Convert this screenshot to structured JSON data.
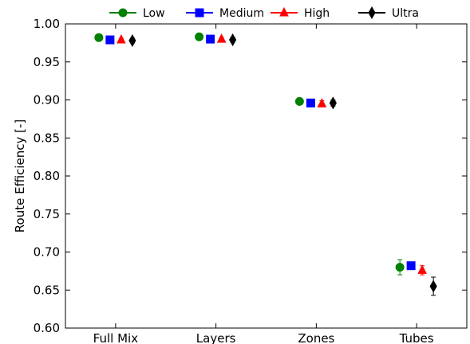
{
  "chart_data": {
    "type": "scatter",
    "title": "",
    "xlabel": "",
    "ylabel": "Route Efficiency [-]",
    "categories": [
      "Full Mix",
      "Layers",
      "Zones",
      "Tubes"
    ],
    "ylim": [
      0.6,
      1.0
    ],
    "yticks": [
      "0.60",
      "0.65",
      "0.70",
      "0.75",
      "0.80",
      "0.85",
      "0.90",
      "0.95",
      "1.00"
    ],
    "grid": false,
    "legend_position": "top",
    "series": [
      {
        "name": "Low",
        "color": "#008000",
        "marker": "circle",
        "values": [
          0.982,
          0.983,
          0.898,
          0.68
        ],
        "errors": [
          0.001,
          0.001,
          0.002,
          0.01
        ]
      },
      {
        "name": "Medium",
        "color": "#0000ff",
        "marker": "square",
        "values": [
          0.979,
          0.98,
          0.896,
          0.682
        ],
        "errors": [
          0.001,
          0.001,
          0.001,
          0.003
        ]
      },
      {
        "name": "High",
        "color": "#ff0000",
        "marker": "triangle",
        "values": [
          0.979,
          0.98,
          0.895,
          0.676
        ],
        "errors": [
          0.002,
          0.002,
          0.004,
          0.006
        ]
      },
      {
        "name": "Ultra",
        "color": "#000000",
        "marker": "diamond",
        "values": [
          0.978,
          0.979,
          0.896,
          0.655
        ],
        "errors": [
          0.003,
          0.003,
          0.004,
          0.012
        ]
      }
    ]
  }
}
